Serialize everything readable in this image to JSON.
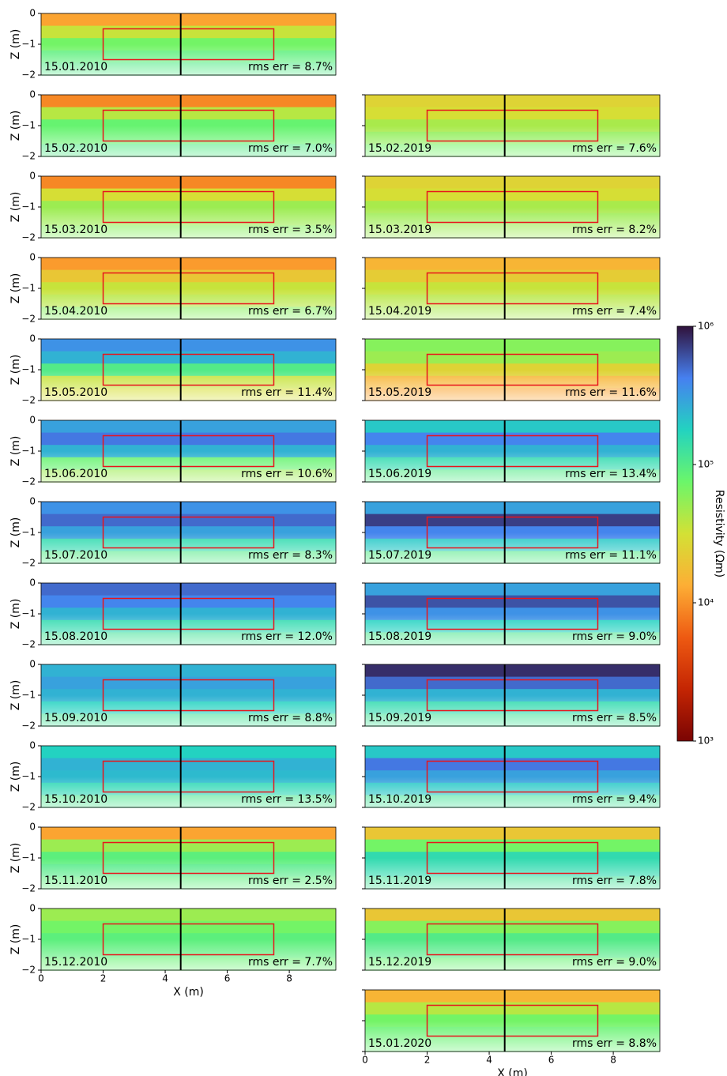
{
  "chart_data": {
    "type": "heatmap",
    "xlabel": "X (m)",
    "ylabel": "Z (m)",
    "xlim": [
      0,
      9.5
    ],
    "xticks": [
      0,
      2,
      4,
      6,
      8
    ],
    "ylim": [
      -2,
      0
    ],
    "yticks": [
      0,
      {
        "value": -1,
        "label": "−1"
      },
      {
        "value": -2,
        "label": "−2"
      }
    ],
    "box": {
      "x": [
        2,
        7.5
      ],
      "z": [
        -0.5,
        -1.5
      ],
      "color": "#e8141c"
    },
    "line": {
      "x": 4.5,
      "color": "#000000"
    },
    "colorbar": {
      "label": "Resistivity (Ωm)",
      "log": true,
      "lim": [
        1000,
        1000000
      ],
      "ticks": [
        {
          "value": 1000,
          "label": "10³"
        },
        {
          "value": 10000,
          "label": "10⁴"
        },
        {
          "value": 100000,
          "label": "10⁵"
        },
        {
          "value": 1000000,
          "label": "10⁶"
        }
      ],
      "colors": [
        "#7a0403",
        "#c42503",
        "#ee5a12",
        "#fdae35",
        "#d3e135",
        "#6bf66a",
        "#23d3c0",
        "#4680f0",
        "#30123b"
      ]
    },
    "columns": [
      [
        {
          "date": "15.01.2010",
          "rms": "rms err = 8.7%",
          "values": [
            12000,
            35000,
            70000,
            90000,
            100000
          ]
        },
        {
          "date": "15.02.2010",
          "rms": "rms err = 7.0%",
          "values": [
            9000,
            40000,
            80000,
            80000,
            100000
          ]
        },
        {
          "date": "15.03.2010",
          "rms": "rms err = 3.5%",
          "values": [
            9000,
            30000,
            50000,
            50000,
            60000
          ]
        },
        {
          "date": "15.04.2010",
          "rms": "rms err = 6.7%",
          "values": [
            11000,
            20000,
            35000,
            40000,
            60000
          ]
        },
        {
          "date": "15.05.2010",
          "rms": "rms err = 11.4%",
          "values": [
            350000,
            250000,
            100000,
            35000,
            30000
          ]
        },
        {
          "date": "15.06.2010",
          "rms": "rms err = 10.6%",
          "values": [
            300000,
            450000,
            250000,
            80000,
            50000
          ]
        },
        {
          "date": "15.07.2010",
          "rms": "rms err = 8.3%",
          "values": [
            350000,
            500000,
            300000,
            150000,
            100000
          ]
        },
        {
          "date": "15.08.2010",
          "rms": "rms err = 12.0%",
          "values": [
            500000,
            400000,
            250000,
            150000,
            120000
          ]
        },
        {
          "date": "15.09.2010",
          "rms": "rms err = 8.8%",
          "values": [
            250000,
            300000,
            250000,
            180000,
            120000
          ]
        },
        {
          "date": "15.10.2010",
          "rms": "rms err = 13.5%",
          "values": [
            180000,
            250000,
            230000,
            160000,
            110000
          ]
        },
        {
          "date": "15.11.2010",
          "rms": "rms err = 2.5%",
          "values": [
            12000,
            50000,
            90000,
            100000,
            90000
          ]
        },
        {
          "date": "15.12.2010",
          "rms": "rms err = 7.7%",
          "values": [
            50000,
            70000,
            90000,
            90000,
            80000
          ]
        }
      ],
      [
        {
          "date": "15.02.2019",
          "rms": "rms err = 7.6%",
          "values": [
            25000,
            30000,
            45000,
            55000,
            70000
          ]
        },
        {
          "date": "15.03.2019",
          "rms": "rms err = 8.2%",
          "values": [
            25000,
            30000,
            45000,
            50000,
            50000
          ]
        },
        {
          "date": "15.04.2019",
          "rms": "rms err = 7.4%",
          "values": [
            15000,
            22000,
            35000,
            40000,
            45000
          ]
        },
        {
          "date": "15.05.2019",
          "rms": "rms err = 11.6%",
          "values": [
            60000,
            50000,
            25000,
            15000,
            12000
          ]
        },
        {
          "date": "15.06.2019",
          "rms": "rms err = 13.4%",
          "values": [
            200000,
            400000,
            250000,
            150000,
            100000
          ]
        },
        {
          "date": "15.07.2019",
          "rms": "rms err = 11.1%",
          "values": [
            300000,
            700000,
            400000,
            200000,
            100000
          ]
        },
        {
          "date": "15.08.2019",
          "rms": "rms err = 9.0%",
          "values": [
            300000,
            600000,
            350000,
            180000,
            110000
          ]
        },
        {
          "date": "15.09.2019",
          "rms": "rms err = 8.5%",
          "values": [
            800000,
            500000,
            250000,
            150000,
            120000
          ]
        },
        {
          "date": "15.10.2019",
          "rms": "rms err = 9.4%",
          "values": [
            200000,
            450000,
            300000,
            200000,
            120000
          ]
        },
        {
          "date": "15.11.2019",
          "rms": "rms err = 7.8%",
          "values": [
            20000,
            70000,
            150000,
            150000,
            120000
          ]
        },
        {
          "date": "15.12.2019",
          "rms": "rms err = 9.0%",
          "values": [
            20000,
            60000,
            100000,
            100000,
            80000
          ]
        },
        {
          "date": "15.01.2020",
          "rms": "rms err = 8.8%",
          "values": [
            15000,
            40000,
            70000,
            80000,
            80000
          ]
        }
      ]
    ]
  }
}
